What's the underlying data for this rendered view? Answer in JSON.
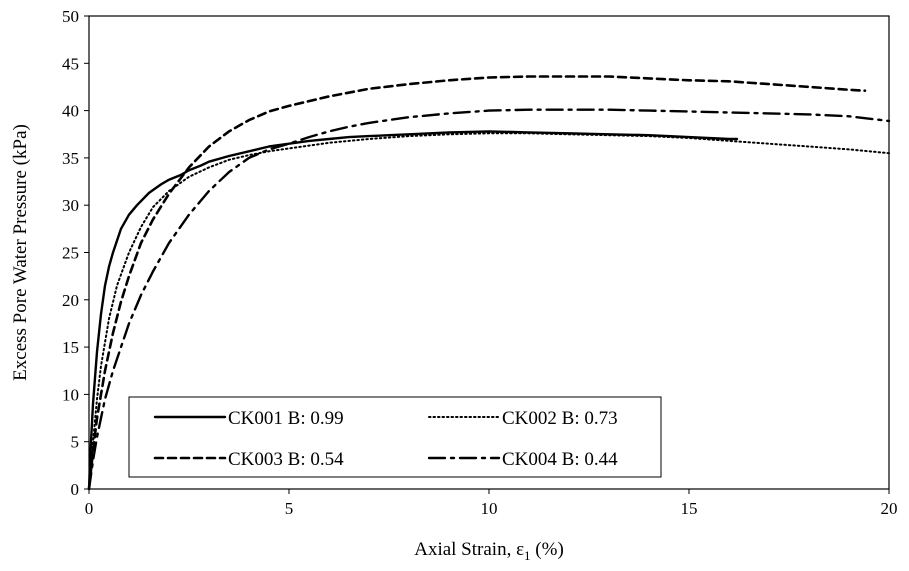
{
  "chart_data": {
    "type": "line",
    "title": "",
    "xlabel": "Axial Strain, ε",
    "xlabel_subscript": "1",
    "xlabel_unit": " (%)",
    "ylabel": "Excess Pore Water Pressure (kPa)",
    "xlim": [
      0,
      20
    ],
    "ylim": [
      0,
      50
    ],
    "xticks": [
      0,
      5,
      10,
      15,
      20
    ],
    "yticks": [
      0,
      5,
      10,
      15,
      20,
      25,
      30,
      35,
      40,
      45,
      50
    ],
    "grid": false,
    "legend_position": "bottom-left",
    "series": [
      {
        "name": "CK001 B: 0.99",
        "style": "solid",
        "color": "#000000",
        "x": [
          0,
          0.05,
          0.1,
          0.2,
          0.3,
          0.4,
          0.5,
          0.6,
          0.8,
          1.0,
          1.2,
          1.5,
          1.8,
          2.0,
          2.3,
          2.5,
          2.8,
          3.0,
          3.5,
          4.0,
          4.5,
          5.0,
          5.5,
          6.0,
          6.5,
          7.0,
          7.5,
          8.0,
          9.0,
          10.0,
          11.0,
          12.0,
          13.0,
          14.0,
          15.0,
          16.0,
          16.2
        ],
        "y": [
          0,
          5,
          9,
          14.5,
          18.5,
          21.5,
          23.5,
          25,
          27.5,
          29,
          30,
          31.3,
          32.2,
          32.7,
          33.2,
          33.7,
          34.2,
          34.6,
          35.2,
          35.7,
          36.2,
          36.5,
          36.8,
          37.0,
          37.2,
          37.3,
          37.4,
          37.5,
          37.7,
          37.8,
          37.7,
          37.6,
          37.5,
          37.4,
          37.2,
          37.0,
          37.0
        ]
      },
      {
        "name": "CK002 B: 0.73",
        "style": "dotted",
        "color": "#000000",
        "x": [
          0,
          0.1,
          0.2,
          0.3,
          0.5,
          0.7,
          1.0,
          1.3,
          1.6,
          2.0,
          2.5,
          3.0,
          3.5,
          4.0,
          4.5,
          5.0,
          5.5,
          6.0,
          7.0,
          8.0,
          9.0,
          10.0,
          11.0,
          12.0,
          13.0,
          14.0,
          15.0,
          16.0,
          17.0,
          18.0,
          19.0,
          20.0
        ],
        "y": [
          0,
          5,
          9.5,
          13,
          18,
          21.5,
          25,
          27.7,
          29.8,
          31.5,
          33.0,
          34.0,
          34.8,
          35.3,
          35.7,
          36.0,
          36.3,
          36.6,
          37.0,
          37.3,
          37.5,
          37.6,
          37.6,
          37.5,
          37.4,
          37.3,
          37.1,
          36.8,
          36.5,
          36.2,
          35.9,
          35.5
        ]
      },
      {
        "name": "CK003 B: 0.54",
        "style": "dashed",
        "color": "#000000",
        "x": [
          0,
          0.1,
          0.2,
          0.4,
          0.6,
          0.8,
          1.0,
          1.3,
          1.6,
          2.0,
          2.5,
          3.0,
          3.5,
          4.0,
          4.5,
          5.0,
          6.0,
          7.0,
          8.0,
          9.0,
          10.0,
          11.0,
          12.0,
          13.0,
          14.0,
          15.0,
          16.0,
          17.0,
          18.0,
          19.0,
          19.4
        ],
        "y": [
          0,
          4,
          7.5,
          12.5,
          16.5,
          19.8,
          22.5,
          26,
          28.5,
          31.2,
          34.0,
          36.2,
          37.8,
          39.0,
          39.9,
          40.5,
          41.5,
          42.3,
          42.8,
          43.2,
          43.5,
          43.6,
          43.6,
          43.6,
          43.4,
          43.2,
          43.1,
          42.8,
          42.5,
          42.2,
          42.1
        ]
      },
      {
        "name": "CK004 B: 0.44",
        "style": "dashdot",
        "color": "#000000",
        "x": [
          0,
          0.1,
          0.2,
          0.4,
          0.6,
          0.8,
          1.0,
          1.3,
          1.6,
          2.0,
          2.5,
          3.0,
          3.5,
          4.0,
          4.5,
          5.0,
          5.5,
          6.0,
          6.5,
          7.0,
          8.0,
          9.0,
          10.0,
          11.0,
          12.0,
          13.0,
          14.0,
          15.0,
          16.0,
          17.0,
          18.0,
          19.0,
          20.0
        ],
        "y": [
          0,
          3,
          5.5,
          9.5,
          12.5,
          15,
          17.5,
          20.5,
          23,
          26,
          29,
          31.5,
          33.5,
          35.0,
          35.9,
          36.5,
          37.2,
          37.8,
          38.3,
          38.7,
          39.3,
          39.7,
          40.0,
          40.1,
          40.1,
          40.1,
          40.0,
          39.9,
          39.8,
          39.7,
          39.6,
          39.4,
          38.9
        ]
      }
    ]
  }
}
